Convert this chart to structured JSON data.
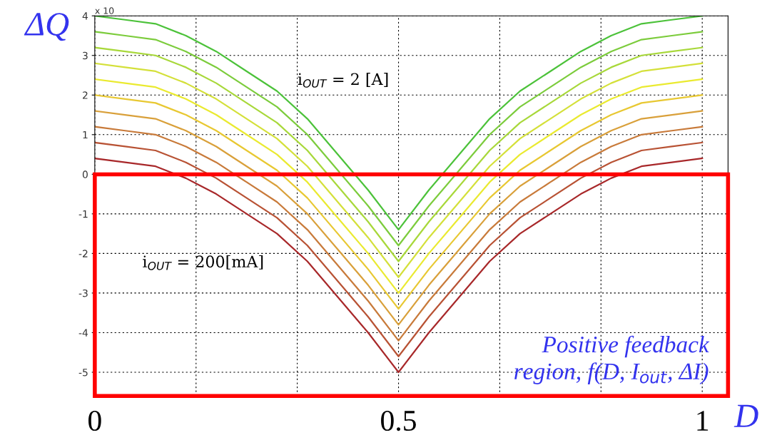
{
  "chart_data": {
    "type": "line",
    "x": [
      0,
      0.05,
      0.1,
      0.15,
      0.2,
      0.25,
      0.3,
      0.35,
      0.4,
      0.45,
      0.5,
      0.55,
      0.6,
      0.65,
      0.7,
      0.75,
      0.8,
      0.85,
      0.9,
      0.95,
      1
    ],
    "series": [
      {
        "color": "#4cc23a",
        "values": [
          4.0,
          3.9,
          3.8,
          3.5,
          3.1,
          2.6,
          2.1,
          1.4,
          0.5,
          -0.4,
          -1.4,
          -0.4,
          0.5,
          1.4,
          2.1,
          2.6,
          3.1,
          3.5,
          3.8,
          3.9,
          4.0
        ]
      },
      {
        "color": "#7ccc3c",
        "values": [
          3.6,
          3.5,
          3.4,
          3.1,
          2.7,
          2.2,
          1.7,
          1.0,
          0.1,
          -0.8,
          -1.8,
          -0.8,
          0.1,
          1.0,
          1.7,
          2.2,
          2.7,
          3.1,
          3.4,
          3.5,
          3.6
        ]
      },
      {
        "color": "#a8d83a",
        "values": [
          3.2,
          3.1,
          3.0,
          2.7,
          2.3,
          1.8,
          1.3,
          0.6,
          -0.3,
          -1.2,
          -2.2,
          -1.2,
          -0.3,
          0.6,
          1.3,
          1.8,
          2.3,
          2.7,
          3.0,
          3.1,
          3.2
        ]
      },
      {
        "color": "#d4e03a",
        "values": [
          2.8,
          2.7,
          2.6,
          2.3,
          1.9,
          1.4,
          0.9,
          0.2,
          -0.7,
          -1.6,
          -2.6,
          -1.6,
          -0.7,
          0.2,
          0.9,
          1.4,
          1.9,
          2.3,
          2.6,
          2.7,
          2.8
        ]
      },
      {
        "color": "#eaea30",
        "values": [
          2.4,
          2.3,
          2.2,
          1.9,
          1.5,
          1.0,
          0.5,
          -0.2,
          -1.1,
          -2.0,
          -3.0,
          -2.0,
          -1.1,
          -0.2,
          0.5,
          1.0,
          1.5,
          1.9,
          2.2,
          2.3,
          2.4
        ]
      },
      {
        "color": "#e8c832",
        "values": [
          2.0,
          1.9,
          1.8,
          1.5,
          1.1,
          0.6,
          0.1,
          -0.6,
          -1.5,
          -2.4,
          -3.4,
          -2.4,
          -1.5,
          -0.6,
          0.1,
          0.6,
          1.1,
          1.5,
          1.8,
          1.9,
          2.0
        ]
      },
      {
        "color": "#d9a03a",
        "values": [
          1.6,
          1.5,
          1.4,
          1.1,
          0.7,
          0.2,
          -0.3,
          -1.0,
          -1.9,
          -2.8,
          -3.8,
          -2.8,
          -1.9,
          -1.0,
          -0.3,
          0.2,
          0.7,
          1.1,
          1.4,
          1.5,
          1.6
        ]
      },
      {
        "color": "#c87a3a",
        "values": [
          1.2,
          1.1,
          1.0,
          0.7,
          0.3,
          -0.2,
          -0.7,
          -1.4,
          -2.3,
          -3.2,
          -4.2,
          -3.2,
          -2.3,
          -1.4,
          -0.7,
          -0.2,
          0.3,
          0.7,
          1.0,
          1.1,
          1.2
        ]
      },
      {
        "color": "#b85234",
        "values": [
          0.8,
          0.7,
          0.6,
          0.3,
          -0.1,
          -0.6,
          -1.1,
          -1.8,
          -2.7,
          -3.6,
          -4.6,
          -3.6,
          -2.7,
          -1.8,
          -1.1,
          -0.6,
          -0.1,
          0.3,
          0.6,
          0.7,
          0.8
        ]
      },
      {
        "color": "#a8282a",
        "values": [
          0.4,
          0.3,
          0.2,
          -0.1,
          -0.5,
          -1.0,
          -1.5,
          -2.2,
          -3.1,
          -4.0,
          -5.0,
          -4.0,
          -3.1,
          -2.2,
          -1.5,
          -1.0,
          -0.5,
          -0.1,
          0.2,
          0.3,
          0.4
        ]
      }
    ],
    "xlabel": "D",
    "ylabel": "ΔQ",
    "xlim": [
      0,
      1.0425
    ],
    "ylim": [
      -5.6,
      4
    ],
    "xticks": [
      0,
      {
        "value": 0.1667,
        "label": null
      },
      {
        "value": 0.3333,
        "label": null
      },
      0.5,
      {
        "value": 0.6667,
        "label": null
      },
      {
        "value": 0.8333,
        "label": null
      },
      1
    ],
    "yticks": [
      -5,
      -4,
      -3,
      -2,
      -1,
      0,
      1,
      2,
      3,
      4
    ],
    "grid": true,
    "marker": "none",
    "line_style": "solid",
    "legend": false,
    "annotations": [
      "x 10",
      "i$_{OUT}$ = 2 [A]",
      "i$_{OUT}$ = 200[mA]",
      "Positive feedback\nregion, f(D, I$_{out}$, ΔI)"
    ]
  }
}
